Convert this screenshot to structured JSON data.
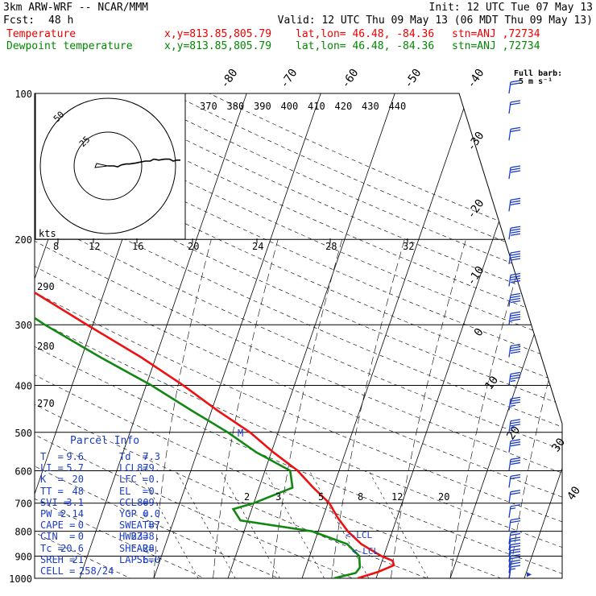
{
  "header": {
    "model": "3km ARW-WRF -- NCAR/MMM",
    "init": "Init: 12 UTC Tue 07 May 13",
    "fcst_label": "Fcst:",
    "fcst_value": "48 h",
    "valid": "Valid: 12 UTC Thu 09 May 13 (06 MDT Thu 09 May 13)",
    "temp_label": "Temperature",
    "dew_label": "Dewpoint temperature",
    "loc_xy": "x,y=813.85,805.79",
    "loc_latlon": "lat,lon= 46.48, -84.36",
    "loc_stn": "stn=ANJ ,72734"
  },
  "colors": {
    "temperature": "#ee1111",
    "dewpoint": "#118811",
    "hodograph": "#000000",
    "parcel_text": "#1a3cc8",
    "wind_barbs": "#1a3cc8"
  },
  "chart_data": {
    "type": "line",
    "chart_kind": "skew-T log-p sounding",
    "ylabel": "",
    "pressure_ticks": [
      100,
      200,
      300,
      400,
      500,
      600,
      700,
      800,
      900,
      1000
    ],
    "pressure_tick_labels": [
      "100",
      "200",
      "300",
      "400",
      "500",
      "600",
      "700",
      "800",
      "900",
      "1000"
    ],
    "isotherm_labels": [
      "-80",
      "-70",
      "-60",
      "-50",
      "-40",
      "-30",
      "-20",
      "-10",
      "0",
      "10",
      "20",
      "30",
      "40"
    ],
    "theta_labels": [
      "370",
      "380",
      "390",
      "400",
      "410",
      "420",
      "430",
      "440"
    ],
    "mixing_ratio_labels": [
      "2",
      "3",
      "5",
      "8",
      "12",
      "20"
    ],
    "theta_left_labels": [
      "290",
      "280",
      "270"
    ],
    "series": [
      {
        "name": "Temperature",
        "points": [
          [
            1000,
            7.5
          ],
          [
            970,
            10.0
          ],
          [
            940,
            11.8
          ],
          [
            920,
            11.4
          ],
          [
            900,
            9.7
          ],
          [
            850,
            6.4
          ],
          [
            800,
            4.0
          ],
          [
            750,
            2.0
          ],
          [
            700,
            0.2
          ],
          [
            650,
            -2.7
          ],
          [
            600,
            -5.6
          ],
          [
            550,
            -9.7
          ],
          [
            500,
            -13.8
          ],
          [
            450,
            -19.3
          ],
          [
            400,
            -25.0
          ],
          [
            350,
            -32.0
          ],
          [
            300,
            -40.8
          ],
          [
            250,
            -51.0
          ],
          [
            220,
            -54.0
          ],
          [
            200,
            -56.0
          ],
          [
            175,
            -57.0
          ],
          [
            150,
            -57.5
          ],
          [
            125,
            -59.2
          ],
          [
            110,
            -62.3
          ],
          [
            100,
            -64.5
          ]
        ]
      },
      {
        "name": "Dewpoint temperature",
        "points": [
          [
            1000,
            4.3
          ],
          [
            975,
            7.0
          ],
          [
            950,
            7.3
          ],
          [
            900,
            6.7
          ],
          [
            850,
            4.5
          ],
          [
            800,
            -0.8
          ],
          [
            760,
            -11.0
          ],
          [
            720,
            -12.5
          ],
          [
            700,
            -10.0
          ],
          [
            650,
            -5.5
          ],
          [
            600,
            -6.6
          ],
          [
            550,
            -12.0
          ],
          [
            500,
            -16.8
          ],
          [
            450,
            -22.8
          ],
          [
            400,
            -29.3
          ],
          [
            350,
            -37.5
          ],
          [
            300,
            -46.5
          ],
          [
            250,
            -56.0
          ],
          [
            220,
            -61.0
          ],
          [
            200,
            -63.0
          ],
          [
            175,
            -66.0
          ],
          [
            150,
            -70.0
          ],
          [
            125,
            -74.5
          ],
          [
            110,
            -79.0
          ],
          [
            100,
            -81.0
          ]
        ]
      }
    ]
  },
  "hodograph": {
    "unit_label": "kts",
    "ring_labels": [
      "25",
      "50"
    ],
    "trace": [
      [
        0,
        0
      ],
      [
        -5,
        0
      ],
      [
        -8,
        -1
      ],
      [
        -11,
        1
      ],
      [
        -15,
        2
      ],
      [
        -18,
        2
      ],
      [
        -23,
        3
      ],
      [
        -27,
        4
      ],
      [
        -31,
        5
      ],
      [
        -35,
        5
      ],
      [
        -38,
        7
      ],
      [
        -42,
        6
      ],
      [
        -47,
        7
      ],
      [
        -51,
        7
      ],
      [
        -54,
        5
      ],
      [
        -57,
        6
      ],
      [
        -60,
        6
      ]
    ]
  },
  "winds": {
    "legend_line1": "Full barb:",
    "legend_line2": "5 m s⁻¹",
    "levels": [
      {
        "p": 1000,
        "s": 8
      },
      {
        "p": 975,
        "s": 12
      },
      {
        "p": 950,
        "s": 12
      },
      {
        "p": 925,
        "s": 10
      },
      {
        "p": 900,
        "s": 10
      },
      {
        "p": 875,
        "s": 10
      },
      {
        "p": 850,
        "s": 10
      },
      {
        "p": 800,
        "s": 10
      },
      {
        "p": 750,
        "s": 9
      },
      {
        "p": 700,
        "s": 10
      },
      {
        "p": 650,
        "s": 12
      },
      {
        "p": 600,
        "s": 15
      },
      {
        "p": 550,
        "s": 17
      },
      {
        "p": 500,
        "s": 18
      },
      {
        "p": 450,
        "s": 18
      },
      {
        "p": 400,
        "s": 19
      },
      {
        "p": 350,
        "s": 20
      },
      {
        "p": 300,
        "s": 20
      },
      {
        "p": 275,
        "s": 20
      },
      {
        "p": 250,
        "s": 20
      },
      {
        "p": 225,
        "s": 20
      },
      {
        "p": 200,
        "s": 20
      },
      {
        "p": 175,
        "s": 17
      },
      {
        "p": 150,
        "s": 15
      },
      {
        "p": 125,
        "s": 12
      },
      {
        "p": 110,
        "s": 11
      },
      {
        "p": 100,
        "s": 10
      }
    ]
  },
  "annotations": {
    "lcl1": "<-LCL",
    "lcl2": "<-LCL",
    "m_marker": "M"
  },
  "parcel_info": {
    "title": "Parcel Info",
    "rows": [
      [
        "T  =",
        "9.6",
        "Td  =",
        "7.3"
      ],
      [
        "LI =",
        "5.7",
        "LCL =",
        "879."
      ],
      [
        "K  =",
        "20",
        "LFC =",
        "0."
      ],
      [
        "TT =",
        "48",
        "EL  =",
        "0."
      ],
      [
        "SVI =",
        "3.1",
        "CCL =",
        "809."
      ],
      [
        "PW =",
        "2.14",
        "YGP =",
        "0.0"
      ],
      [
        "CAPE =",
        "0",
        "SWEAT=",
        "87"
      ],
      [
        "CIN  =",
        "0",
        "HWBZ=",
        "2338."
      ],
      [
        "Tc =",
        "20.6",
        "SHEAR=",
        "28."
      ],
      [
        "SREH =",
        "21",
        "LAPSE=",
        "6.0"
      ],
      [
        "CELL =",
        "258/24",
        "",
        ""
      ]
    ]
  }
}
